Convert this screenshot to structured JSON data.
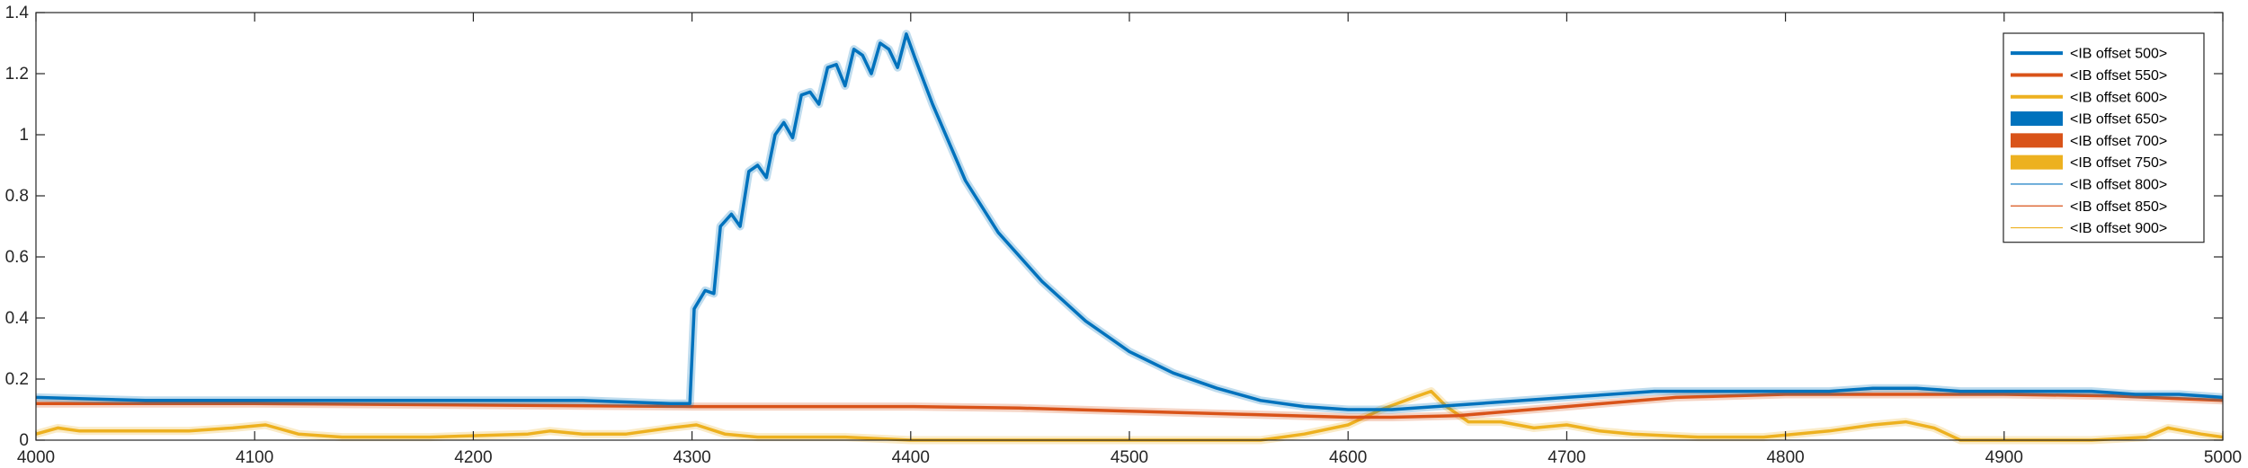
{
  "chart_data": {
    "type": "line",
    "title": "",
    "xlabel": "",
    "ylabel": "",
    "xlim": [
      4000,
      5000
    ],
    "ylim": [
      0,
      1.4
    ],
    "xticks": [
      "4000",
      "4100",
      "4200",
      "4300",
      "4400",
      "4500",
      "4600",
      "4700",
      "4800",
      "4900",
      "5000"
    ],
    "yticks": [
      "0",
      "0.2",
      "0.4",
      "0.6",
      "0.8",
      "1",
      "1.2",
      "1.4"
    ],
    "grid": false,
    "legend_position": "top-right",
    "legend": [
      {
        "label": "<IB offset 500>",
        "color": "#0072BD",
        "style": "line-thick"
      },
      {
        "label": "<IB offset 550>",
        "color": "#D95319",
        "style": "line-thick"
      },
      {
        "label": "<IB offset 600>",
        "color": "#EDB120",
        "style": "line-thick"
      },
      {
        "label": "<IB offset 650>",
        "color": "#0072BD",
        "style": "area"
      },
      {
        "label": "<IB offset 700>",
        "color": "#D95319",
        "style": "area"
      },
      {
        "label": "<IB offset 750>",
        "color": "#EDB120",
        "style": "area"
      },
      {
        "label": "<IB offset 800>",
        "color": "#0072BD",
        "style": "line-thin"
      },
      {
        "label": "<IB offset 850>",
        "color": "#D95319",
        "style": "line-thin"
      },
      {
        "label": "<IB offset 900>",
        "color": "#EDB120",
        "style": "line-thin"
      }
    ],
    "series": [
      {
        "color": "#0072BD",
        "x": [
          4000,
          4050,
          4100,
          4150,
          4200,
          4250,
          4290,
          4299,
          4301,
          4306,
          4310,
          4313,
          4318,
          4322,
          4326,
          4330,
          4334,
          4338,
          4342,
          4346,
          4350,
          4354,
          4358,
          4362,
          4366,
          4370,
          4374,
          4378,
          4382,
          4386,
          4390,
          4394,
          4398,
          4402,
          4410,
          4425,
          4440,
          4460,
          4480,
          4500,
          4520,
          4540,
          4560,
          4580,
          4600,
          4620,
          4640,
          4660,
          4680,
          4700,
          4720,
          4740,
          4760,
          4780,
          4800,
          4820,
          4840,
          4860,
          4880,
          4900,
          4920,
          4940,
          4960,
          4980,
          5000
        ],
        "y": [
          0.14,
          0.13,
          0.13,
          0.13,
          0.13,
          0.13,
          0.12,
          0.12,
          0.43,
          0.49,
          0.48,
          0.7,
          0.74,
          0.7,
          0.88,
          0.9,
          0.86,
          1.0,
          1.04,
          0.99,
          1.13,
          1.14,
          1.1,
          1.22,
          1.23,
          1.16,
          1.28,
          1.26,
          1.2,
          1.3,
          1.28,
          1.22,
          1.33,
          1.25,
          1.1,
          0.85,
          0.68,
          0.52,
          0.39,
          0.29,
          0.22,
          0.17,
          0.13,
          0.11,
          0.1,
          0.1,
          0.11,
          0.12,
          0.13,
          0.14,
          0.15,
          0.16,
          0.16,
          0.16,
          0.16,
          0.16,
          0.17,
          0.17,
          0.16,
          0.16,
          0.16,
          0.16,
          0.15,
          0.15,
          0.14
        ]
      },
      {
        "color": "#D95319",
        "x": [
          4000,
          4100,
          4200,
          4300,
          4400,
          4450,
          4500,
          4550,
          4600,
          4620,
          4650,
          4700,
          4750,
          4800,
          4850,
          4900,
          4950,
          5000
        ],
        "y": [
          0.12,
          0.12,
          0.115,
          0.11,
          0.11,
          0.105,
          0.095,
          0.085,
          0.075,
          0.075,
          0.08,
          0.11,
          0.14,
          0.15,
          0.15,
          0.15,
          0.145,
          0.13
        ]
      },
      {
        "color": "#EDB120",
        "x": [
          4000,
          4010,
          4020,
          4050,
          4070,
          4090,
          4105,
          4120,
          4140,
          4180,
          4225,
          4235,
          4250,
          4270,
          4290,
          4302,
          4315,
          4330,
          4370,
          4400,
          4500,
          4560,
          4580,
          4600,
          4615,
          4630,
          4638,
          4645,
          4655,
          4670,
          4685,
          4700,
          4715,
          4730,
          4760,
          4790,
          4820,
          4840,
          4855,
          4868,
          4880,
          4900,
          4940,
          4965,
          4975,
          4990,
          5000
        ],
        "y": [
          0.02,
          0.04,
          0.03,
          0.03,
          0.03,
          0.04,
          0.05,
          0.02,
          0.01,
          0.01,
          0.02,
          0.03,
          0.02,
          0.02,
          0.04,
          0.05,
          0.02,
          0.01,
          0.01,
          0.0,
          0.0,
          0.0,
          0.02,
          0.05,
          0.1,
          0.14,
          0.16,
          0.11,
          0.06,
          0.06,
          0.04,
          0.05,
          0.03,
          0.02,
          0.01,
          0.01,
          0.03,
          0.05,
          0.06,
          0.04,
          0.0,
          0.0,
          0.0,
          0.01,
          0.04,
          0.02,
          0.01
        ]
      }
    ]
  }
}
